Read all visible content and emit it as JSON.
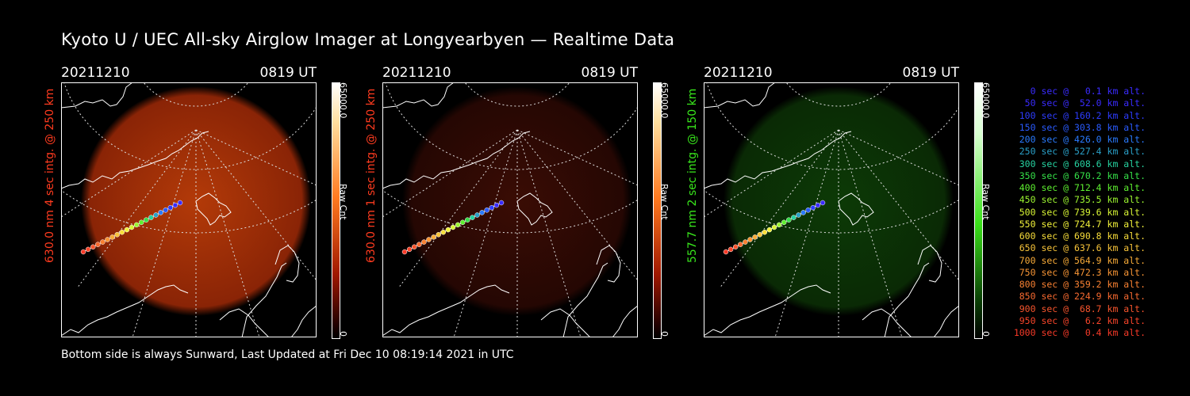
{
  "title": "Kyoto U / UEC All-sky Airglow Imager at Longyearbyen — Realtime Data",
  "footer": "Bottom side is always Sunward, Last Updated at Fri Dec 10 08:19:14 2021 in UTC",
  "panels": [
    {
      "date": "20211210",
      "time": "0819 UT",
      "label": "630.0 nm 4 sec intg. @ 250 km",
      "label_color": "#ff3b1f",
      "cbar_max": "65000.0",
      "cbar_unit": "Raw Cnt",
      "cbar_min": "0",
      "colormap": "red",
      "brightness": "high"
    },
    {
      "date": "20211210",
      "time": "0819 UT",
      "label": "630.0 nm 1 sec intg. @ 250 km",
      "label_color": "#ff3b1f",
      "cbar_max": "65000.0",
      "cbar_unit": "Raw Cnt",
      "cbar_min": "0",
      "colormap": "red",
      "brightness": "low"
    },
    {
      "date": "20211210",
      "time": "0819 UT",
      "label": "557.7 nm 2 sec intg. @ 150 km",
      "label_color": "#39e81c",
      "cbar_max": "65000.0",
      "cbar_unit": "Raw Cnt",
      "cbar_min": "0",
      "colormap": "green",
      "brightness": "low"
    }
  ],
  "legend": [
    {
      "text": "0 sec @   0.1 km alt.",
      "color": "#3a2bff"
    },
    {
      "text": "50 sec @  52.0 km alt.",
      "color": "#3a2bff"
    },
    {
      "text": "100 sec @ 160.2 km alt.",
      "color": "#2d3cff"
    },
    {
      "text": "150 sec @ 303.8 km alt.",
      "color": "#2a5bff"
    },
    {
      "text": "200 sec @ 426.0 km alt.",
      "color": "#2a7bff"
    },
    {
      "text": "250 sec @ 527.4 km alt.",
      "color": "#2aa0c8"
    },
    {
      "text": "300 sec @ 608.6 km alt.",
      "color": "#26d2a0"
    },
    {
      "text": "350 sec @ 670.2 km alt.",
      "color": "#35e048"
    },
    {
      "text": "400 sec @ 712.4 km alt.",
      "color": "#5ef030"
    },
    {
      "text": "450 sec @ 735.5 km alt.",
      "color": "#9cf530"
    },
    {
      "text": "500 sec @ 739.6 km alt.",
      "color": "#d8f535"
    },
    {
      "text": "550 sec @ 724.7 km alt.",
      "color": "#f2f23a"
    },
    {
      "text": "600 sec @ 690.8 km alt.",
      "color": "#f8dd3a"
    },
    {
      "text": "650 sec @ 637.6 km alt.",
      "color": "#f8c43a"
    },
    {
      "text": "700 sec @ 564.9 km alt.",
      "color": "#f8ab38"
    },
    {
      "text": "750 sec @ 472.3 km alt.",
      "color": "#f89535"
    },
    {
      "text": "800 sec @ 359.2 km alt.",
      "color": "#f88032"
    },
    {
      "text": "850 sec @ 224.9 km alt.",
      "color": "#f86a30"
    },
    {
      "text": "900 sec @  68.7 km alt.",
      "color": "#f8552d"
    },
    {
      "text": "950 sec @   6.2 km alt.",
      "color": "#f8452a"
    },
    {
      "text": "1000 sec @   0.4 km alt.",
      "color": "#f83a28"
    }
  ]
}
